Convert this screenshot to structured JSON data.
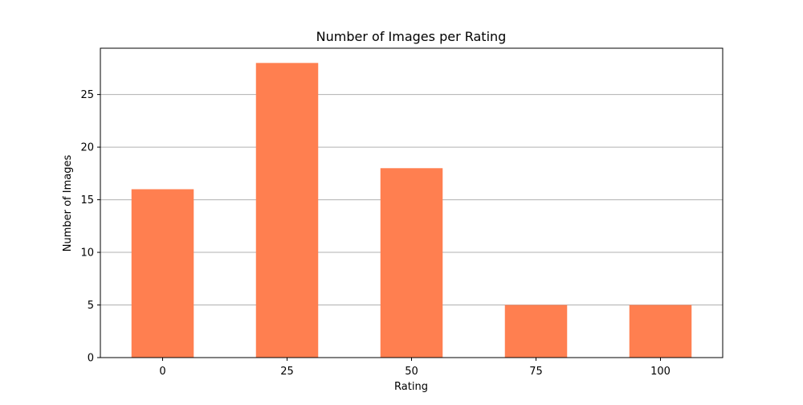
{
  "chart_data": {
    "type": "bar",
    "title": "Number of Images per Rating",
    "xlabel": "Rating",
    "ylabel": "Number of Images",
    "categories": [
      "0",
      "25",
      "50",
      "75",
      "100"
    ],
    "values": [
      16,
      28,
      18,
      5,
      5
    ],
    "ylim": [
      0,
      29.4
    ],
    "yticks": [
      0,
      5,
      10,
      15,
      20,
      25
    ],
    "grid": "horizontal",
    "bar_color": "#ff7f50",
    "legend": "none"
  }
}
